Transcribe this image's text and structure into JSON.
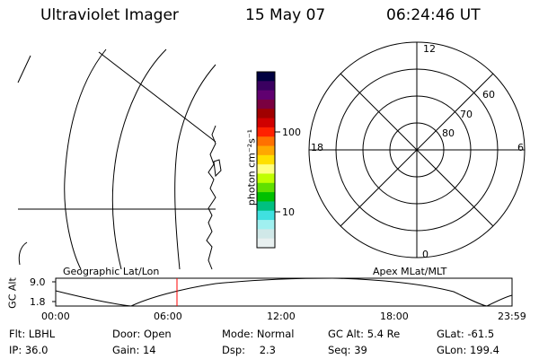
{
  "header": {
    "instrument": "Ultraviolet Imager",
    "date": "15 May 07",
    "time": "06:24:46 UT"
  },
  "colorbar": {
    "unit_label": "photon cm⁻²s⁻¹",
    "ticks": [
      "100",
      "10"
    ],
    "colors": [
      "#000040",
      "#3a0060",
      "#600070",
      "#7a0040",
      "#a00000",
      "#d00000",
      "#ff2000",
      "#ff7000",
      "#ffa800",
      "#ffe000",
      "#ffff80",
      "#c0ff00",
      "#60e000",
      "#00c000",
      "#00c080",
      "#40e0e0",
      "#a0f0f0",
      "#d0e8e8",
      "#e8f0f0"
    ]
  },
  "polar_plot": {
    "mlt_labels": {
      "top": "12",
      "left": "18",
      "right": "6",
      "bottom": "0"
    },
    "mlat_labels": [
      "60",
      "70",
      "80"
    ]
  },
  "left_label": "Geographic Lat/Lon",
  "right_label": "Apex MLat/MLT",
  "altitude_plot": {
    "ylabel": "GC Alt",
    "yticks": [
      "9.0",
      "1.8"
    ],
    "xticks": [
      "00:00",
      "06:00",
      "12:00",
      "18:00",
      "23:59"
    ],
    "current_time_marker": "06:24"
  },
  "status": {
    "rows": [
      [
        {
          "label": "Flt:",
          "value": "LBHL"
        },
        {
          "label": "Door:",
          "value": "Open"
        },
        {
          "label": "Mode:",
          "value": "Normal"
        },
        {
          "label": "GC Alt:",
          "value": "5.4 Re"
        },
        {
          "label": "GLat:",
          "value": "-61.5"
        }
      ],
      [
        {
          "label": "IP:",
          "value": "36.0"
        },
        {
          "label": "Gain:",
          "value": "14"
        },
        {
          "label": "Dsp:",
          "value": "2.3"
        },
        {
          "label": "Seq:",
          "value": "39"
        },
        {
          "label": "GLon:",
          "value": "199.4"
        }
      ]
    ]
  }
}
